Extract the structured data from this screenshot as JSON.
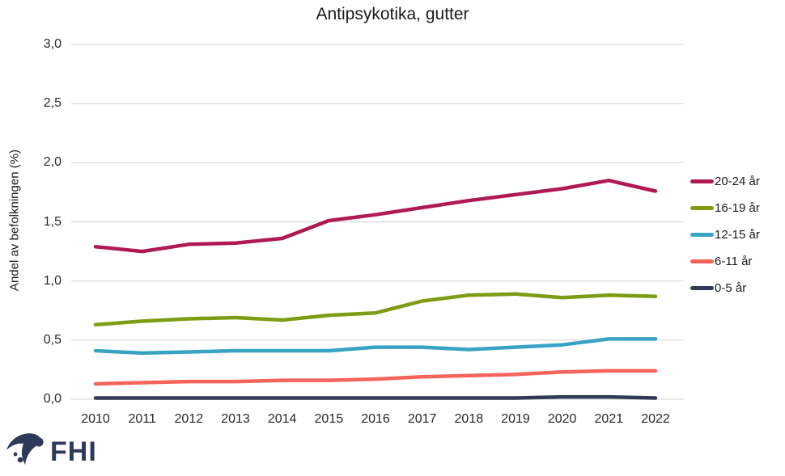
{
  "title": "Antipsykotika, gutter",
  "y_axis_label": "Andel av befolkningen (%)",
  "logo": {
    "text": "FHI"
  },
  "colors": {
    "background": "#FFFFFF",
    "grid": "#D9D9D9",
    "tick_text": "#262626",
    "title_text": "#1A1A1A",
    "logo": "#2E3A59"
  },
  "chart_data": {
    "type": "line",
    "title": "Antipsykotika, gutter",
    "xlabel": "",
    "ylabel": "Andel av befolkningen (%)",
    "ylim": [
      0.0,
      3.0
    ],
    "grid": true,
    "legend_position": "right",
    "categories": [
      "2010",
      "2011",
      "2012",
      "2013",
      "2014",
      "2015",
      "2016",
      "2017",
      "2018",
      "2019",
      "2020",
      "2021",
      "2022"
    ],
    "y_ticks": [
      {
        "value": 0.0,
        "label": "0,0"
      },
      {
        "value": 0.5,
        "label": "0,5"
      },
      {
        "value": 1.0,
        "label": "1,0"
      },
      {
        "value": 1.5,
        "label": "1,5"
      },
      {
        "value": 2.0,
        "label": "2,0"
      },
      {
        "value": 2.5,
        "label": "2,5"
      },
      {
        "value": 3.0,
        "label": "3,0"
      }
    ],
    "series": [
      {
        "name": "20-24 år",
        "color": "#B01A52",
        "values": [
          1.29,
          1.25,
          1.31,
          1.32,
          1.36,
          1.51,
          1.56,
          1.62,
          1.68,
          1.73,
          1.78,
          1.85,
          1.76
        ]
      },
      {
        "name": "16-19 år",
        "color": "#7E9B14",
        "values": [
          0.63,
          0.66,
          0.68,
          0.69,
          0.67,
          0.71,
          0.73,
          0.83,
          0.88,
          0.89,
          0.86,
          0.88,
          0.87
        ]
      },
      {
        "name": "12-15 år",
        "color": "#38A3C4",
        "values": [
          0.41,
          0.39,
          0.4,
          0.41,
          0.41,
          0.41,
          0.44,
          0.44,
          0.42,
          0.44,
          0.46,
          0.51,
          0.51
        ]
      },
      {
        "name": "6-11 år",
        "color": "#F5635A",
        "values": [
          0.13,
          0.14,
          0.15,
          0.15,
          0.16,
          0.16,
          0.17,
          0.19,
          0.2,
          0.21,
          0.23,
          0.24,
          0.24
        ]
      },
      {
        "name": "0-5 år",
        "color": "#333A56",
        "values": [
          0.01,
          0.01,
          0.01,
          0.01,
          0.01,
          0.01,
          0.01,
          0.01,
          0.01,
          0.01,
          0.02,
          0.02,
          0.01
        ]
      }
    ]
  }
}
